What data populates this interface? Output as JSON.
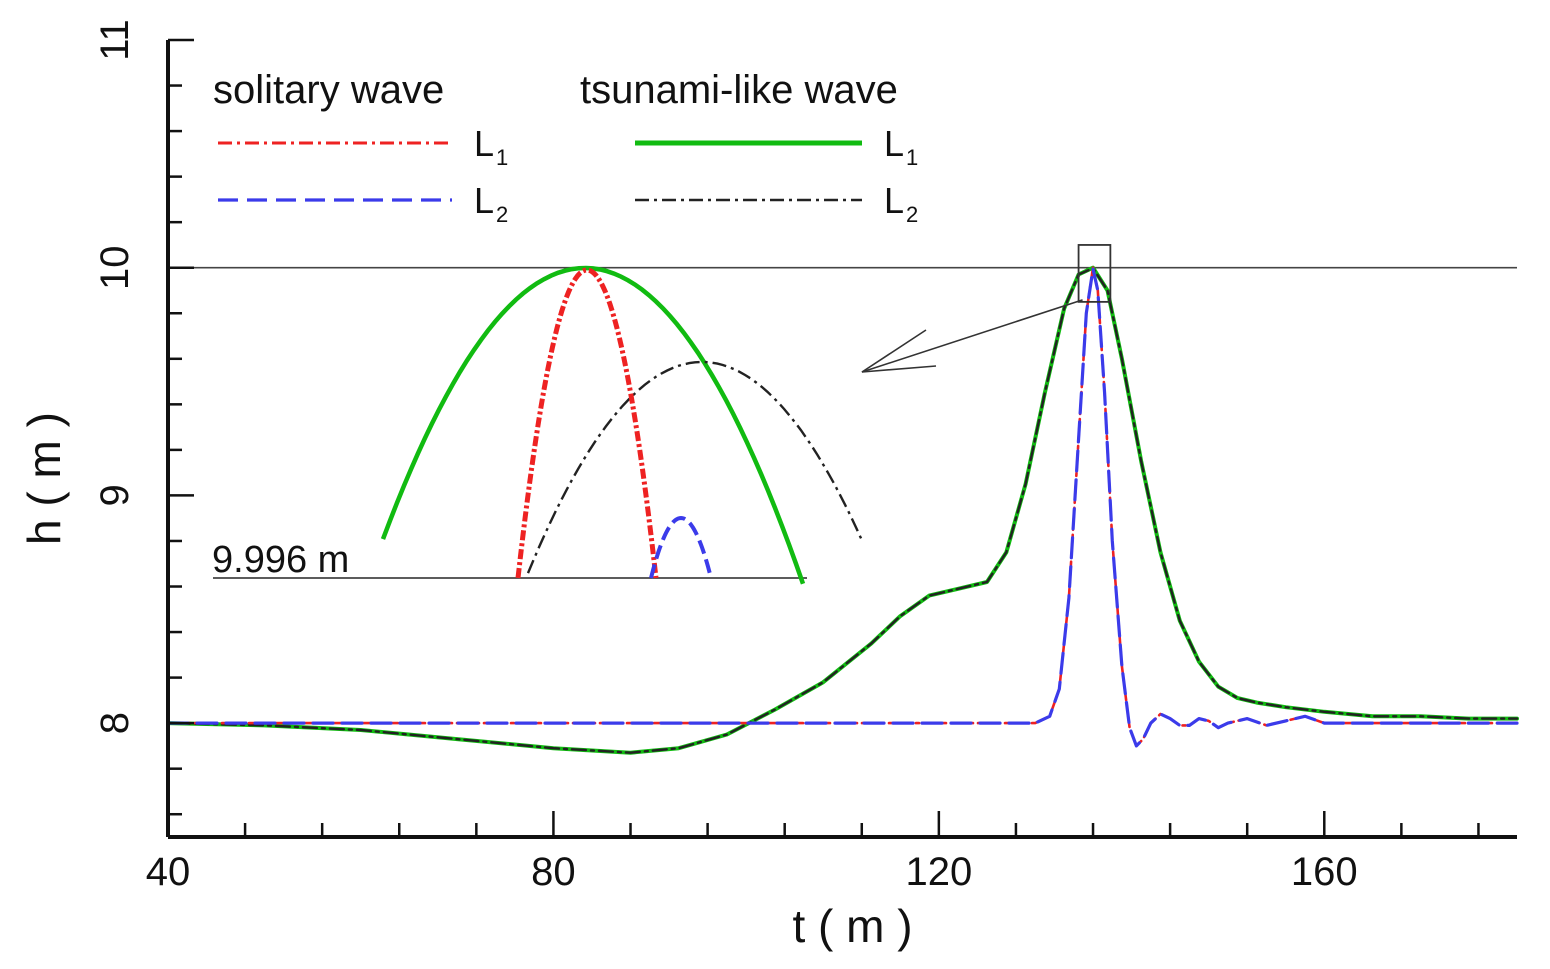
{
  "chart_data": {
    "type": "line",
    "xlabel": "t ( m )",
    "ylabel": "h ( m )",
    "xlim": [
      40,
      180
    ],
    "ylim": [
      7.5,
      11
    ],
    "xticks": [
      40,
      80,
      120,
      160
    ],
    "xtick_labels": [
      "40",
      "80",
      "120",
      "160"
    ],
    "yticks": [
      8,
      9,
      10,
      11
    ],
    "ytick_labels": [
      "8",
      "9",
      "10",
      "11"
    ],
    "reference_line_y": 10,
    "legend": {
      "group_titles": [
        "solitary wave",
        "tsunami-like wave"
      ],
      "entries": [
        {
          "group": "solitary wave",
          "label": "L",
          "sub": "1",
          "color": "#ee2222",
          "style": "dashdot"
        },
        {
          "group": "solitary wave",
          "label": "L",
          "sub": "2",
          "color": "#3b3bea",
          "style": "dashed"
        },
        {
          "group": "tsunami-like wave",
          "label": "L",
          "sub": "1",
          "color": "#11bb11",
          "style": "solid"
        },
        {
          "group": "tsunami-like wave",
          "label": "L",
          "sub": "2",
          "color": "#222222",
          "style": "dashdot"
        }
      ]
    },
    "series": [
      {
        "name": "solitary wave L1",
        "color": "#ee2222",
        "style": "dashdot",
        "x": [
          40,
          120,
          130,
          131.5,
          132.5,
          133.5,
          134.5,
          135.3,
          136,
          136.5,
          137.2,
          138,
          139,
          139.8,
          140.5,
          141.2,
          142,
          143,
          144,
          145,
          146,
          147,
          148,
          149,
          150,
          152,
          154,
          156,
          158,
          160,
          165,
          170,
          180
        ],
        "y": [
          8.0,
          8.0,
          8.0,
          8.03,
          8.15,
          8.55,
          9.25,
          9.8,
          10.0,
          9.9,
          9.45,
          8.8,
          8.25,
          7.98,
          7.9,
          7.93,
          8.0,
          8.04,
          8.02,
          7.99,
          7.99,
          8.02,
          8.01,
          7.98,
          8.0,
          8.02,
          7.99,
          8.01,
          8.03,
          8.0,
          8.0,
          8.0,
          8.0
        ]
      },
      {
        "name": "solitary wave L2",
        "color": "#3b3bea",
        "style": "dashed",
        "x": [
          40,
          120,
          130,
          131.5,
          132.5,
          133.5,
          134.5,
          135.3,
          136,
          136.5,
          137.2,
          138,
          139,
          139.8,
          140.5,
          141.2,
          142,
          143,
          144,
          145,
          146,
          147,
          148,
          149,
          150,
          152,
          154,
          156,
          158,
          160,
          165,
          170,
          180
        ],
        "y": [
          8.0,
          8.0,
          8.0,
          8.03,
          8.15,
          8.55,
          9.25,
          9.8,
          9.995,
          9.9,
          9.45,
          8.8,
          8.25,
          7.98,
          7.9,
          7.93,
          8.0,
          8.04,
          8.02,
          7.99,
          7.99,
          8.02,
          8.01,
          7.98,
          8.0,
          8.02,
          7.99,
          8.01,
          8.03,
          8.0,
          8.0,
          8.0,
          8.0
        ]
      },
      {
        "name": "tsunami-like wave L1",
        "color": "#11bb11",
        "style": "solid",
        "x": [
          40,
          50,
          60,
          70,
          80,
          88,
          93,
          98,
          103,
          108,
          113,
          116,
          119,
          122,
          125,
          127,
          129,
          131,
          133,
          134.5,
          136,
          137.5,
          139,
          141,
          143,
          145,
          147,
          149,
          151,
          153,
          156,
          160,
          165,
          170,
          175,
          180
        ],
        "y": [
          8.0,
          7.99,
          7.97,
          7.93,
          7.89,
          7.87,
          7.89,
          7.95,
          8.06,
          8.18,
          8.35,
          8.47,
          8.56,
          8.59,
          8.62,
          8.75,
          9.05,
          9.45,
          9.82,
          9.97,
          10.0,
          9.9,
          9.6,
          9.15,
          8.75,
          8.45,
          8.27,
          8.16,
          8.11,
          8.09,
          8.07,
          8.05,
          8.03,
          8.03,
          8.02,
          8.02
        ]
      },
      {
        "name": "tsunami-like wave L2",
        "color": "#222222",
        "style": "dashdot",
        "x": [
          40,
          50,
          60,
          70,
          80,
          88,
          93,
          98,
          103,
          108,
          113,
          116,
          119,
          122,
          125,
          127,
          129,
          131,
          133,
          134.5,
          136,
          137.5,
          139,
          141,
          143,
          145,
          147,
          149,
          151,
          153,
          156,
          160,
          165,
          170,
          175,
          180
        ],
        "y": [
          8.0,
          7.99,
          7.97,
          7.93,
          7.89,
          7.87,
          7.89,
          7.95,
          8.06,
          8.18,
          8.35,
          8.47,
          8.56,
          8.59,
          8.62,
          8.75,
          9.05,
          9.45,
          9.82,
          9.97,
          9.998,
          9.9,
          9.6,
          9.15,
          8.75,
          8.45,
          8.27,
          8.16,
          8.11,
          8.09,
          8.07,
          8.05,
          8.03,
          8.03,
          8.02,
          8.02
        ]
      }
    ],
    "inset": {
      "description_value": "zoom on peak region near t ≈ 136, h ≈ 10",
      "baseline_label": "9.996 m",
      "baseline_value": 9.996,
      "source_box_x": [
        134.5,
        137.8
      ],
      "source_box_y": [
        9.85,
        10.1
      ]
    }
  }
}
